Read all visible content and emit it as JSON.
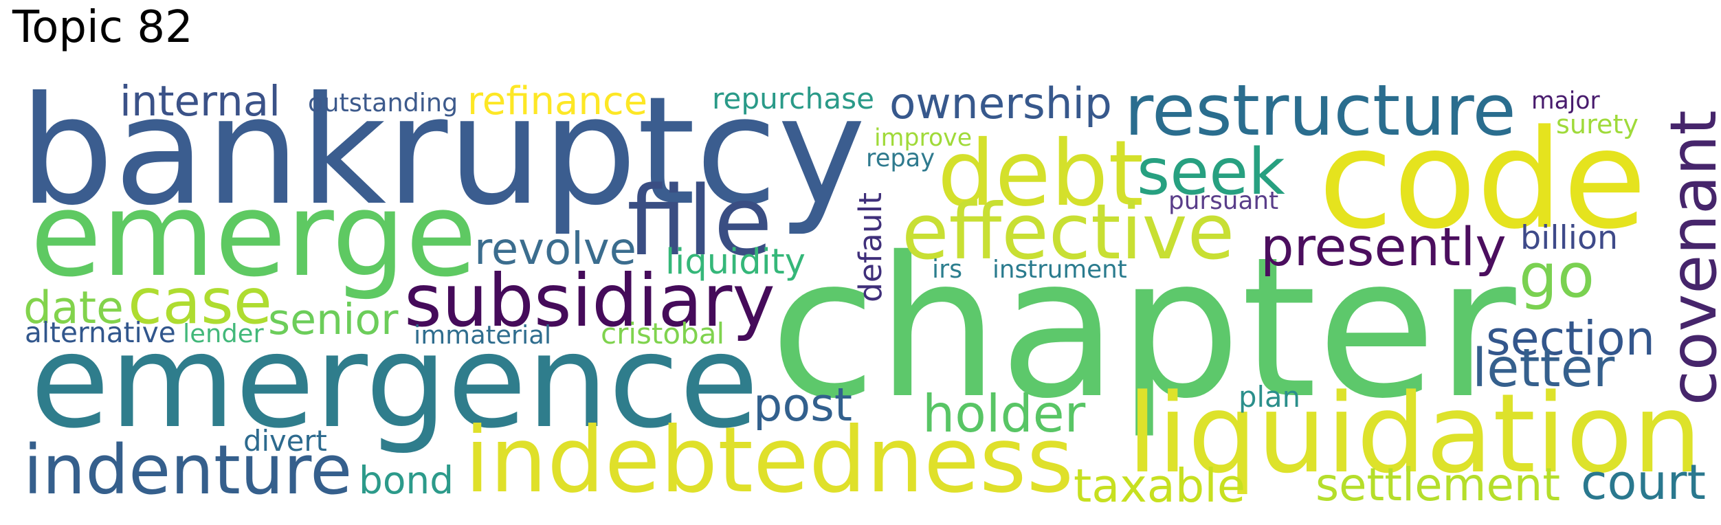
{
  "title": "Topic 82",
  "words": [
    {
      "text": "bankruptcy",
      "color": "#3b5d8f"
    },
    {
      "text": "chapter",
      "color": "#5dc86b"
    },
    {
      "text": "emergence",
      "color": "#2f7d8c"
    },
    {
      "text": "emerge",
      "color": "#5ec962"
    },
    {
      "text": "code",
      "color": "#e5e31e"
    },
    {
      "text": "indebtedness",
      "color": "#dfe02a"
    },
    {
      "text": "liquidation",
      "color": "#dde22b"
    },
    {
      "text": "restructure",
      "color": "#2a6d8e"
    },
    {
      "text": "debt",
      "color": "#d4e02b"
    },
    {
      "text": "seek",
      "color": "#27a080"
    },
    {
      "text": "effective",
      "color": "#c8df33"
    },
    {
      "text": "subsidiary",
      "color": "#450b5a"
    },
    {
      "text": "covenant",
      "color": "#46256b"
    },
    {
      "text": "indenture",
      "color": "#355f8c"
    },
    {
      "text": "file",
      "color": "#3a4e83"
    },
    {
      "text": "case",
      "color": "#aedc30"
    },
    {
      "text": "presently",
      "color": "#4b0e5e"
    },
    {
      "text": "ownership",
      "color": "#37588c"
    },
    {
      "text": "go",
      "color": "#7ad151"
    },
    {
      "text": "holder",
      "color": "#58c565"
    },
    {
      "text": "post",
      "color": "#32608d"
    },
    {
      "text": "revolve",
      "color": "#3b6d8e"
    },
    {
      "text": "section",
      "color": "#33568c"
    },
    {
      "text": "letter",
      "color": "#35608d"
    },
    {
      "text": "date",
      "color": "#82d34c"
    },
    {
      "text": "senior",
      "color": "#6ccd5a"
    },
    {
      "text": "internal",
      "color": "#3b5288"
    },
    {
      "text": "refinance",
      "color": "#fde725"
    },
    {
      "text": "taxable",
      "color": "#c7e020"
    },
    {
      "text": "settlement",
      "color": "#b5de2b"
    },
    {
      "text": "court",
      "color": "#2a788e"
    },
    {
      "text": "bond",
      "color": "#2c9a8a"
    },
    {
      "text": "repurchase",
      "color": "#2a9a88"
    },
    {
      "text": "outstanding",
      "color": "#3d5a8c"
    },
    {
      "text": "liquidity",
      "color": "#35b779"
    },
    {
      "text": "pursuant",
      "color": "#5a3e8a"
    },
    {
      "text": "improve",
      "color": "#a0da39"
    },
    {
      "text": "repay",
      "color": "#2f7a8e"
    },
    {
      "text": "surety",
      "color": "#9fda3a"
    },
    {
      "text": "major",
      "color": "#481b6d"
    },
    {
      "text": "billion",
      "color": "#3e4a89"
    },
    {
      "text": "default",
      "color": "#3f2f7a"
    },
    {
      "text": "irs",
      "color": "#2c7e8e"
    },
    {
      "text": "instrument",
      "color": "#2a7b8e"
    },
    {
      "text": "plan",
      "color": "#2b8f8b"
    },
    {
      "text": "alternative",
      "color": "#31568c"
    },
    {
      "text": "lender",
      "color": "#42b87a"
    },
    {
      "text": "immaterial",
      "color": "#2f6d8e"
    },
    {
      "text": "cristobal",
      "color": "#7fd34e"
    },
    {
      "text": "divert",
      "color": "#2d6a8e"
    }
  ]
}
